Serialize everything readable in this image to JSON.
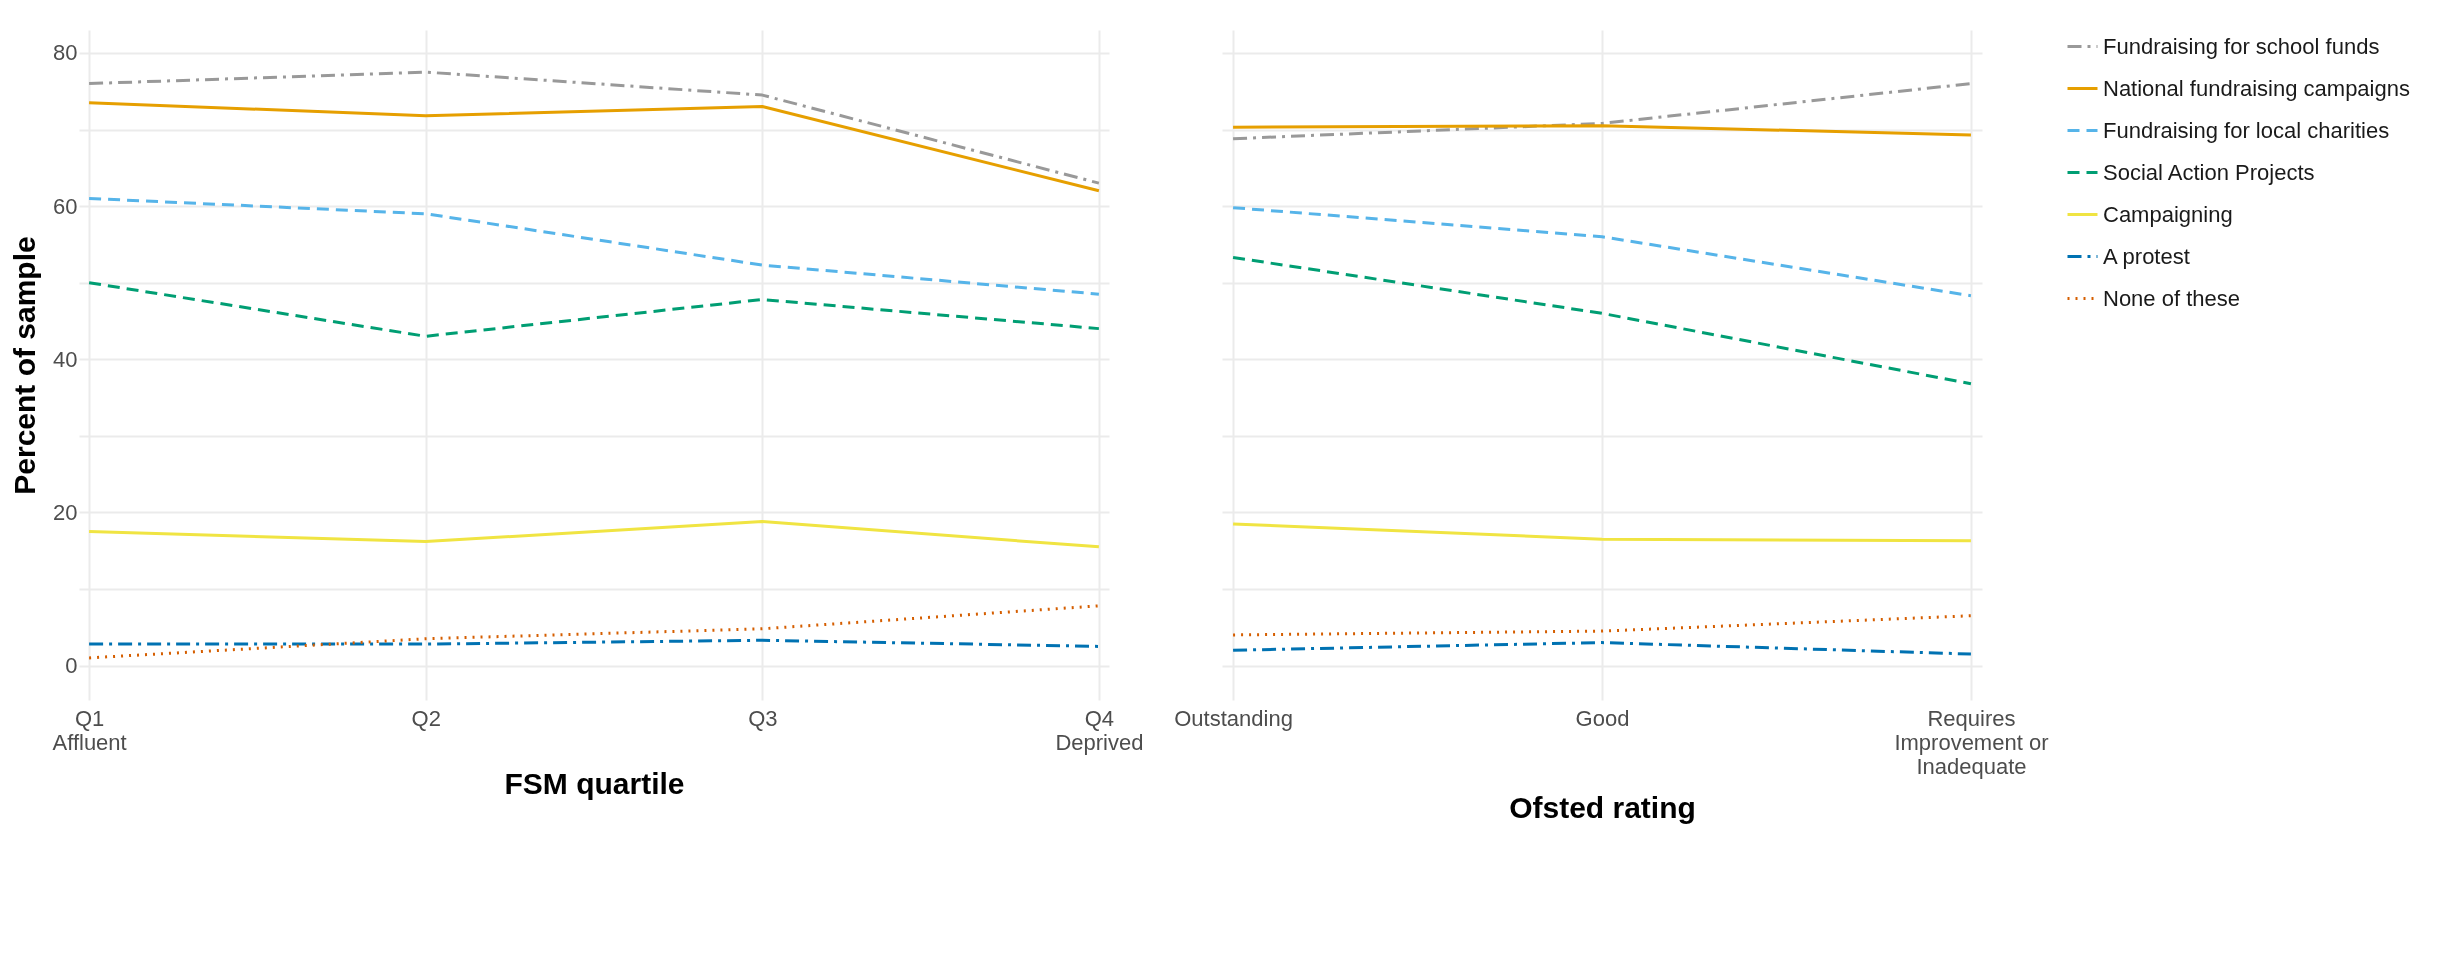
{
  "chart_data": [
    {
      "type": "line",
      "xlabel": "FSM quartile",
      "ylabel": "Percent of sample",
      "categories": [
        "Q1\nAffluent",
        "Q2",
        "Q3",
        "Q4\nDeprived"
      ],
      "series": [
        {
          "name": "Fundraising for school funds",
          "color": "#999999",
          "line_style": "dashdot",
          "values": [
            76,
            77.5,
            74.5,
            63
          ]
        },
        {
          "name": "National fundraising campaigns",
          "color": "#e69f00",
          "line_style": "solid",
          "values": [
            73.5,
            71.8,
            73,
            62
          ]
        },
        {
          "name": "Fundraising for local charities",
          "color": "#56b4e9",
          "line_style": "dashed",
          "values": [
            61,
            59,
            52.3,
            48.5
          ]
        },
        {
          "name": "Social Action Projects",
          "color": "#009e73",
          "line_style": "dashed",
          "values": [
            50,
            43,
            47.8,
            44
          ]
        },
        {
          "name": "Campaigning",
          "color": "#f0e442",
          "line_style": "solid",
          "values": [
            17.5,
            16.2,
            18.8,
            15.5
          ]
        },
        {
          "name": "A protest",
          "color": "#0072b2",
          "line_style": "dashdot",
          "values": [
            2.8,
            2.8,
            3.3,
            2.5
          ]
        },
        {
          "name": "None of these",
          "color": "#d55e00",
          "line_style": "dotted",
          "values": [
            1,
            3.5,
            4.8,
            7.8
          ]
        }
      ],
      "ylim": [
        -4.5,
        83
      ],
      "yticks": [
        0,
        {
          "value": 10,
          "label": null
        },
        20,
        {
          "value": 30,
          "label": null
        },
        40,
        {
          "value": 50,
          "label": null
        },
        60,
        {
          "value": 70,
          "label": null
        },
        80
      ],
      "grid": true,
      "legend": "right"
    },
    {
      "type": "line",
      "xlabel": "Ofsted rating",
      "categories": [
        "Outstanding",
        "Good",
        "Requires\nImprovement or\nInadequate"
      ],
      "series": [
        {
          "name": "Fundraising for school funds",
          "color": "#999999",
          "line_style": "dashdot",
          "values": [
            68.8,
            70.8,
            76
          ]
        },
        {
          "name": "National fundraising campaigns",
          "color": "#e69f00",
          "line_style": "solid",
          "values": [
            70.3,
            70.5,
            69.3
          ]
        },
        {
          "name": "Fundraising for local charities",
          "color": "#56b4e9",
          "line_style": "dashed",
          "values": [
            59.8,
            56,
            48.3
          ]
        },
        {
          "name": "Social Action Projects",
          "color": "#009e73",
          "line_style": "dashed",
          "values": [
            53.3,
            46,
            36.8
          ]
        },
        {
          "name": "Campaigning",
          "color": "#f0e442",
          "line_style": "solid",
          "values": [
            18.5,
            16.5,
            16.3
          ]
        },
        {
          "name": "A protest",
          "color": "#0072b2",
          "line_style": "dashdot",
          "values": [
            2,
            3,
            1.5
          ]
        },
        {
          "name": "None of these",
          "color": "#d55e00",
          "line_style": "dotted",
          "values": [
            4,
            4.5,
            6.5
          ]
        }
      ],
      "ylim": [
        -4.5,
        83
      ],
      "yticks": [
        0,
        {
          "value": 10,
          "label": null
        },
        20,
        {
          "value": 30,
          "label": null
        },
        40,
        {
          "value": 50,
          "label": null
        },
        60,
        {
          "value": 70,
          "label": null
        },
        80
      ],
      "grid": true,
      "legend": "right",
      "tick_labels": "x"
    }
  ]
}
